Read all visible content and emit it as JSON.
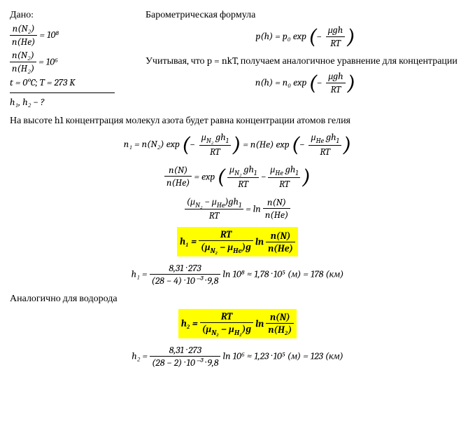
{
  "given": {
    "label": "Дано:",
    "ratio_n2_he_lhs_num": "n(N₂)",
    "ratio_n2_he_lhs_den": "n(He)",
    "ratio_n2_he_rhs": " = 10⁸",
    "ratio_n2_h2_lhs_num": "n(N₂)",
    "ratio_n2_h2_lhs_den": "n(H₂)",
    "ratio_n2_h2_rhs": " = 10⁶",
    "temp": "t = 0°C; T = 273 K",
    "unknown": "h₁, h₂ − ?"
  },
  "sol": {
    "baro_title": "Барометрическая формула",
    "p_eq_lhs": "p(h) = p₀ exp",
    "p_eq_frac_num": "μgh",
    "p_eq_frac_den": "RT",
    "note1": "Учитывая, что p = nkT, получаем аналогичное уравнение для концентрации",
    "n_eq_lhs": "n(h) = n₀ exp",
    "n_eq_frac_num": "μgh",
    "n_eq_frac_den": "RT"
  },
  "main": {
    "p1": "На высоте h1 концентрация молекул азота будет равна концентрации атомов гелия",
    "eq1_l": "n₁ = n(N₂) exp",
    "eq1_l_num": "μ_{N₂} gh₁",
    "eq1_l_den": "RT",
    "eq1_mid": " =  n(He) exp",
    "eq1_r_num": "μ_{He} gh₁",
    "eq1_r_den": "RT",
    "eq2_lhs_num": "n(N)",
    "eq2_lhs_den": "n(He)",
    "eq2_mid": " = exp",
    "eq2_in_l_num": "μ_{N₂} gh₁",
    "eq2_in_l_den": "RT",
    "eq2_in_minus": " − ",
    "eq2_in_r_num": "μ_{He} gh₁",
    "eq2_in_r_den": "RT",
    "eq3_lhs_num": "(μ_{N₂} − μ_{He})gh₁",
    "eq3_lhs_den": "RT",
    "eq3_rhs_pre": " = ln ",
    "eq3_rhs_num": "n(N)",
    "eq3_rhs_den": "n(He)",
    "h1_boxed_lhs": "h₁ = ",
    "h1_boxed_num": "RT",
    "h1_boxed_den": "(μ_{N₂} − μ_{He})g",
    "h1_boxed_ln": " ln ",
    "h1_boxed_r_num": "n(N)",
    "h1_boxed_r_den": "n(He)",
    "h1_num_lhs": "h₁ = ",
    "h1_num_num": "8,31 · 273",
    "h1_num_den": "(28 − 4) · 10⁻³ · 9,8",
    "h1_num_rest": " ln 10⁸  ≈ 1,78 · 10⁵ (м) = 178 (км)",
    "p2": "Аналогично для водорода",
    "h2_boxed_lhs": "h₂ = ",
    "h2_boxed_num": "RT",
    "h2_boxed_den": "(μ_{N₂} − μ_{H₂})g",
    "h2_boxed_ln": " ln ",
    "h2_boxed_r_num": "n(N)",
    "h2_boxed_r_den": "n(H₂)",
    "h2_num_lhs": "h₂ = ",
    "h2_num_num": "8,31 · 273",
    "h2_num_den": "(28 − 2) · 10⁻³ · 9,8",
    "h2_num_rest": " ln 10⁶ ≈ 1,23 · 10⁵ (м) = 123 (км)"
  }
}
